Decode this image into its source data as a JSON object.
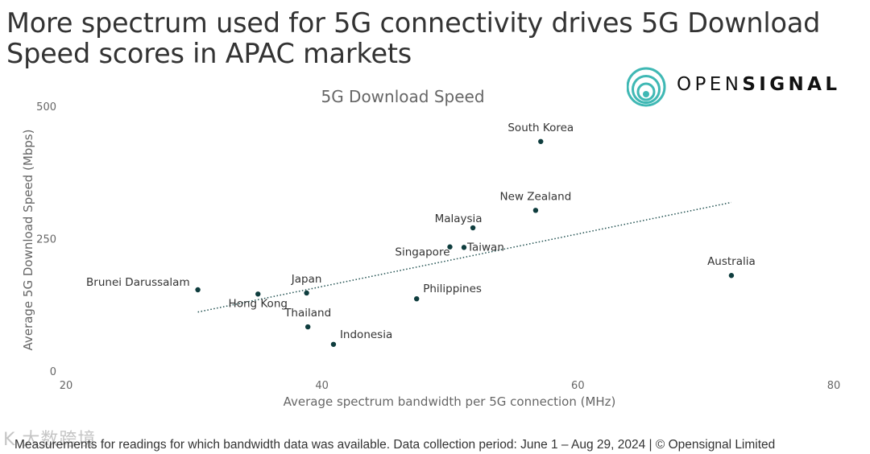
{
  "headline": "More spectrum used for 5G connectivity drives 5G Download Speed scores in APAC markets",
  "logo": {
    "part1": "OPEN",
    "part2": "SIGNAL",
    "brand_color": "#3fb8b4"
  },
  "footnote": "Measurements for readings for which bandwidth data was available. Data collection period: June 1 – Aug 29, 2024 | © Opensignal Limited",
  "watermark": "K 大数跨境",
  "colors": {
    "point": "#0f3d3e",
    "trend": "#1f4f4f",
    "axis_text": "#666666",
    "title_text": "#666666"
  },
  "chart_data": {
    "type": "scatter",
    "title": "5G Download Speed",
    "xlabel": "Average spectrum bandwidth per 5G connection (MHz)",
    "ylabel": "Average 5G Download Speed (Mbps)",
    "xlim": [
      20,
      80
    ],
    "ylim": [
      0,
      500
    ],
    "xticks": [
      20,
      40,
      60,
      80
    ],
    "yticks": [
      0,
      250,
      500
    ],
    "points": [
      {
        "label": "South Korea",
        "x": 57.1,
        "y": 435,
        "label_pos": "above"
      },
      {
        "label": "New Zealand",
        "x": 56.7,
        "y": 305,
        "label_pos": "above"
      },
      {
        "label": "Malaysia",
        "x": 51.8,
        "y": 272,
        "label_pos": "above-left"
      },
      {
        "label": "Taiwan",
        "x": 51.1,
        "y": 235,
        "label_pos": "right"
      },
      {
        "label": "Singapore",
        "x": 50.0,
        "y": 236,
        "label_pos": "below-left"
      },
      {
        "label": "Australia",
        "x": 72.0,
        "y": 182,
        "label_pos": "above"
      },
      {
        "label": "Philippines",
        "x": 47.4,
        "y": 138,
        "label_pos": "above-right"
      },
      {
        "label": "Brunei Darussalam",
        "x": 30.3,
        "y": 155,
        "label_pos": "left"
      },
      {
        "label": "Hong Kong",
        "x": 35.0,
        "y": 147,
        "label_pos": "below"
      },
      {
        "label": "Japan",
        "x": 38.8,
        "y": 149,
        "label_pos": "above"
      },
      {
        "label": "Thailand",
        "x": 38.9,
        "y": 85,
        "label_pos": "above"
      },
      {
        "label": "Indonesia",
        "x": 40.9,
        "y": 52,
        "label_pos": "above-right"
      }
    ],
    "trendline": {
      "x": [
        30.3,
        72.0
      ],
      "y": [
        113,
        320
      ],
      "style": "dotted"
    }
  }
}
